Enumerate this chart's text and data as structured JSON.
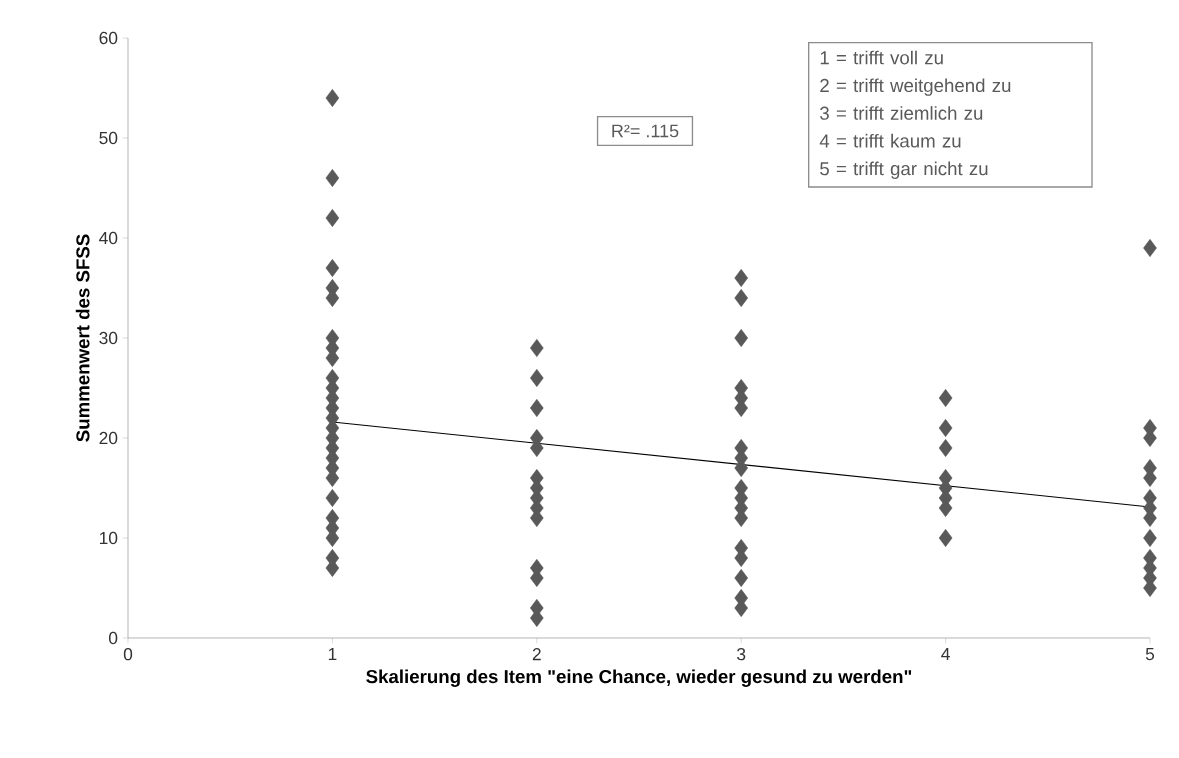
{
  "chart_data": {
    "type": "scatter",
    "xlabel": "Skalierung des Item \"eine Chance, wieder gesund zu werden\"",
    "ylabel": "Summenwert des SFSS",
    "xlim": [
      0,
      5
    ],
    "xticks": [
      0,
      1,
      2,
      3,
      4,
      5
    ],
    "ylim": [
      0,
      60
    ],
    "yticks": [
      0,
      10,
      20,
      30,
      40,
      50,
      60
    ],
    "grid": false,
    "marker": "diamond",
    "annotations": [
      "R²= .115",
      "1 = trifft voll zu",
      "2 = trifft weitgehend zu",
      "3 = trifft ziemlich zu",
      "4 = trifft kaum zu",
      "5 = trifft gar nicht zu"
    ],
    "series": [
      {
        "color": "#595959",
        "x": [
          1,
          1,
          1,
          1,
          1,
          1,
          1,
          1,
          1,
          1,
          1,
          1,
          1,
          1,
          1,
          1,
          1,
          1,
          1,
          1,
          1,
          1,
          1,
          1,
          1,
          1,
          2,
          2,
          2,
          2,
          2,
          2,
          2,
          2,
          2,
          2,
          2,
          2,
          2,
          2,
          3,
          3,
          3,
          3,
          3,
          3,
          3,
          3,
          3,
          3,
          3,
          3,
          3,
          3,
          3,
          3,
          3,
          3,
          4,
          4,
          4,
          4,
          4,
          4,
          4,
          4,
          5,
          5,
          5,
          5,
          5,
          5,
          5,
          5,
          5,
          5,
          5,
          5,
          5
        ],
        "values": [
          54,
          46,
          42,
          37,
          35,
          34,
          30,
          29,
          28,
          26,
          25,
          24,
          23,
          22,
          21,
          20,
          19,
          18,
          17,
          16,
          14,
          12,
          11,
          10,
          8,
          7,
          29,
          26,
          23,
          20,
          19,
          16,
          15,
          14,
          13,
          12,
          7,
          6,
          3,
          2,
          36,
          34,
          30,
          25,
          24,
          23,
          19,
          18,
          17,
          15,
          14,
          13,
          12,
          9,
          8,
          6,
          4,
          3,
          24,
          21,
          19,
          16,
          15,
          14,
          13,
          10,
          39,
          21,
          20,
          17,
          16,
          14,
          13,
          12,
          10,
          8,
          7,
          6,
          5
        ]
      },
      {
        "type": "line",
        "color": "#000000",
        "marker": "none",
        "x": [
          1,
          5
        ],
        "values": [
          21.6,
          13.1
        ]
      }
    ]
  }
}
